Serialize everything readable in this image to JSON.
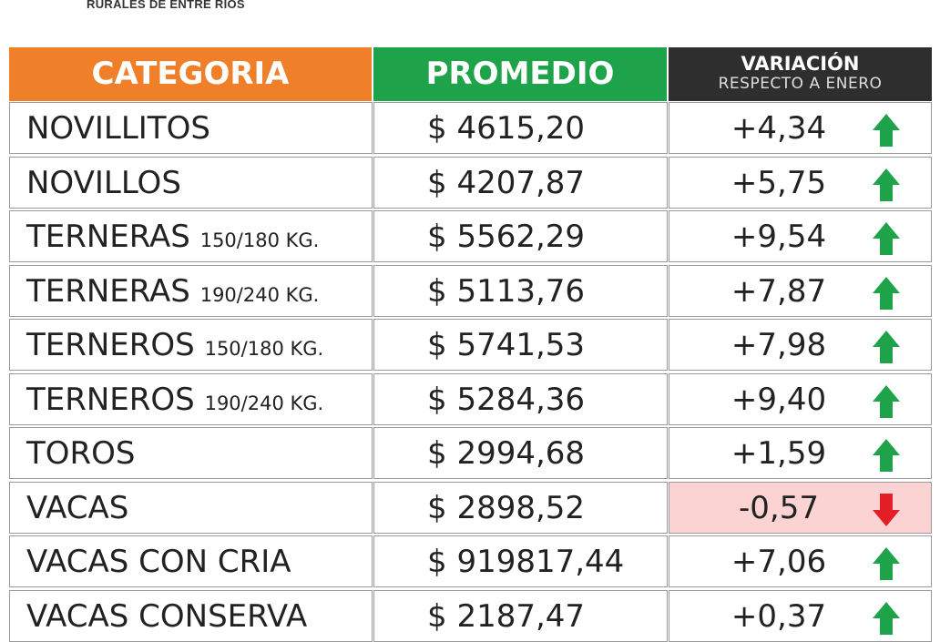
{
  "header": {
    "brand": "RURALES DE ENTRE RIOS"
  },
  "table": {
    "headers": [
      "CATEGORIA",
      "PROMEDIO",
      "VARIACIÓN",
      "RESPECTO A  ENERO"
    ],
    "rows": [
      {
        "name": "NOVILLITOS",
        "detail": null,
        "price": "$ 4615,20",
        "change": "+4,34"
      },
      {
        "name": "NOVILLOS",
        "detail": null,
        "price": "$ 4207,87",
        "change": "+5,75"
      },
      {
        "name": "TERNERAS",
        "detail": "150/180 KG.",
        "price": "$ 5562,29",
        "change": "+9,54"
      },
      {
        "name": "TERNERAS",
        "detail": "190/240 KG.",
        "price": "$ 5113,76",
        "change": "+7,87"
      },
      {
        "name": "TERNEROS",
        "detail": "150/180 KG.",
        "price": "$ 5741,53",
        "change": "+7,98"
      },
      {
        "name": "TERNEROS",
        "detail": "190/240 KG.",
        "price": "$ 5284,36",
        "change": "+9,40"
      },
      {
        "name": "TOROS",
        "detail": null,
        "price": "$ 2994,68",
        "change": "+1,59"
      },
      {
        "name": "VACAS",
        "detail": null,
        "price": "$ 2898,52",
        "change": "-0,57"
      },
      {
        "name": "VACAS CON CRIA",
        "detail": null,
        "price": "$ 919817,44",
        "change": "+7,06"
      },
      {
        "name": "VACAS CONSERVA",
        "detail": null,
        "price": "$ 2187,47",
        "change": "+0,37"
      }
    ]
  }
}
